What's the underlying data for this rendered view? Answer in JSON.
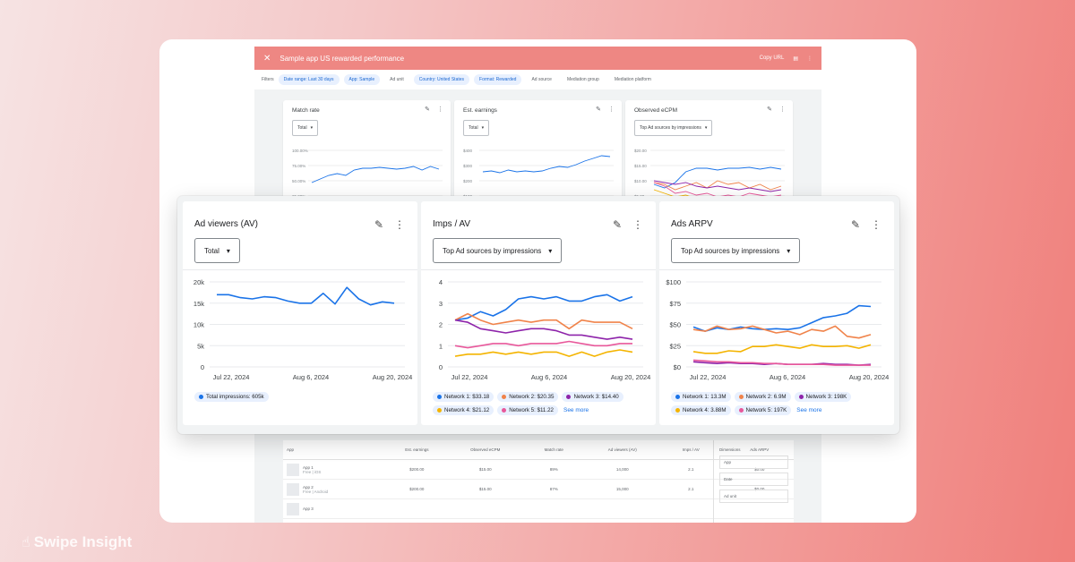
{
  "watermark": "Swipe Insight",
  "topbar": {
    "title": "Sample app US rewarded performance",
    "copy_url": "Copy URL"
  },
  "filters": {
    "label": "Filters",
    "chips": [
      "Date range: Last 30 days",
      "App: Sample",
      "Ad unit",
      "Country: United States",
      "Format: Rewarded",
      "Ad source",
      "Mediation group",
      "Mediation platform"
    ],
    "active": [
      true,
      true,
      false,
      true,
      true,
      false,
      false,
      false
    ]
  },
  "minicards": [
    {
      "title": "Match rate",
      "dropdown": "Total",
      "yticks": [
        "100.00%",
        "75.00%",
        "50.00%",
        "25.00%"
      ]
    },
    {
      "title": "Est. earnings",
      "dropdown": "Total",
      "yticks": [
        "$400",
        "$300",
        "$200",
        "$100"
      ]
    },
    {
      "title": "Observed eCPM",
      "dropdown": "Top Ad sources by impressions",
      "yticks": [
        "$20.00",
        "$15.00",
        "$10.00",
        "$5.00"
      ]
    }
  ],
  "table": {
    "headers": [
      "App",
      "Est. earnings",
      "Observed eCPM",
      "Match rate",
      "Ad viewers (AV)",
      "Imps / AV",
      "Ads ARPV"
    ],
    "rows": [
      {
        "name": "App 1",
        "sub": "Free | iOS",
        "values": [
          "$200.00",
          "$15.00",
          "89%",
          "14,000",
          "2.1",
          "$0.00"
        ]
      },
      {
        "name": "App 2",
        "sub": "Free | Android",
        "values": [
          "$200.00",
          "$15.00",
          "87%",
          "15,000",
          "2.1",
          "$0.00"
        ]
      },
      {
        "name": "App 3",
        "sub": "",
        "values": [
          "",
          "",
          "",
          "",
          "",
          ""
        ]
      }
    ],
    "dimensions_label": "Dimensions",
    "dimensions": [
      "App",
      "Date",
      "Ad unit"
    ]
  },
  "cards": [
    {
      "title": "Ad viewers (AV)",
      "dropdown": "Total",
      "yticks": [
        "20k",
        "15k",
        "10k",
        "5k",
        "0"
      ],
      "xticks": [
        "Jul 22, 2024",
        "Aug 6, 2024",
        "Aug 20, 2024"
      ],
      "legend": [
        {
          "label": "Total impressions: 605k",
          "color": "#1a73e8"
        }
      ],
      "see_more": ""
    },
    {
      "title": "Imps / AV",
      "dropdown": "Top Ad sources by impressions",
      "yticks": [
        "4",
        "3",
        "2",
        "1",
        "0"
      ],
      "xticks": [
        "Jul 22, 2024",
        "Aug 6, 2024",
        "Aug 20, 2024"
      ],
      "legend": [
        {
          "label": "Network 1: $33.18",
          "color": "#1a73e8"
        },
        {
          "label": "Network 2: $20.35",
          "color": "#f0834a"
        },
        {
          "label": "Network 3: $14.40",
          "color": "#8e24aa"
        },
        {
          "label": "Network 4: $21.12",
          "color": "#f4b400"
        },
        {
          "label": "Network 5: $11.22",
          "color": "#e8589b"
        }
      ],
      "see_more": "See more"
    },
    {
      "title": "Ads ARPV",
      "dropdown": "Top Ad sources by impressions",
      "yticks": [
        "$100",
        "$75",
        "$50",
        "$25",
        "$0"
      ],
      "xticks": [
        "Jul 22, 2024",
        "Aug 6, 2024",
        "Aug 20, 2024"
      ],
      "legend": [
        {
          "label": "Network 1: 13.3M",
          "color": "#1a73e8"
        },
        {
          "label": "Network 2: 6.9M",
          "color": "#f0834a"
        },
        {
          "label": "Network 3: 198K",
          "color": "#8e24aa"
        },
        {
          "label": "Network 4: 3.88M",
          "color": "#f4b400"
        },
        {
          "label": "Network 5: 197K",
          "color": "#e8589b"
        }
      ],
      "see_more": "See more"
    }
  ],
  "chart_data": [
    {
      "type": "line",
      "title": "Ad viewers (AV)",
      "x_ticks": [
        "Jul 22, 2024",
        "Aug 6, 2024",
        "Aug 20, 2024"
      ],
      "ylim": [
        0,
        20000
      ],
      "series": [
        {
          "name": "Total impressions: 605k",
          "color": "#1a73e8",
          "values": [
            17000,
            17000,
            16300,
            16000,
            16500,
            16300,
            15500,
            15000,
            15000,
            17300,
            14800,
            18700,
            16000,
            14600,
            15300,
            15000
          ]
        }
      ]
    },
    {
      "type": "line",
      "title": "Imps / AV",
      "x_ticks": [
        "Jul 22, 2024",
        "Aug 6, 2024",
        "Aug 20, 2024"
      ],
      "ylim": [
        0,
        4
      ],
      "series": [
        {
          "name": "Network 1: $33.18",
          "color": "#1a73e8",
          "values": [
            2.2,
            2.3,
            2.6,
            2.4,
            2.7,
            3.2,
            3.3,
            3.2,
            3.3,
            3.1,
            3.1,
            3.3,
            3.4,
            3.1,
            3.3
          ]
        },
        {
          "name": "Network 2: $20.35",
          "color": "#f0834a",
          "values": [
            2.2,
            2.5,
            2.2,
            2.0,
            2.1,
            2.2,
            2.1,
            2.2,
            2.2,
            1.8,
            2.2,
            2.1,
            2.1,
            2.1,
            1.8
          ]
        },
        {
          "name": "Network 3: $14.40",
          "color": "#8e24aa",
          "values": [
            2.2,
            2.1,
            1.8,
            1.7,
            1.6,
            1.7,
            1.8,
            1.8,
            1.7,
            1.5,
            1.5,
            1.4,
            1.3,
            1.4,
            1.3
          ]
        },
        {
          "name": "Network 4: $21.12",
          "color": "#f4b400",
          "values": [
            0.5,
            0.6,
            0.6,
            0.7,
            0.6,
            0.7,
            0.6,
            0.7,
            0.7,
            0.5,
            0.7,
            0.5,
            0.7,
            0.8,
            0.7
          ]
        },
        {
          "name": "Network 5: $11.22",
          "color": "#e8589b",
          "values": [
            1.0,
            0.9,
            1.0,
            1.1,
            1.1,
            1.0,
            1.1,
            1.1,
            1.1,
            1.2,
            1.1,
            1.0,
            1.0,
            1.1,
            1.1
          ]
        }
      ]
    },
    {
      "type": "line",
      "title": "Ads ARPV",
      "x_ticks": [
        "Jul 22, 2024",
        "Aug 6, 2024",
        "Aug 20, 2024"
      ],
      "ylim": [
        0,
        100
      ],
      "series": [
        {
          "name": "Network 1: 13.3M",
          "color": "#1a73e8",
          "values": [
            47,
            42,
            46,
            44,
            47,
            45,
            44,
            45,
            44,
            46,
            52,
            58,
            60,
            63,
            72,
            71
          ]
        },
        {
          "name": "Network 2: 6.9M",
          "color": "#f0834a",
          "values": [
            44,
            42,
            48,
            44,
            45,
            48,
            44,
            40,
            42,
            38,
            44,
            42,
            48,
            36,
            34,
            38
          ]
        },
        {
          "name": "Network 3: 198K",
          "color": "#8e24aa",
          "values": [
            6,
            5,
            4,
            5,
            4,
            4,
            3,
            4,
            3,
            3,
            3,
            4,
            3,
            3,
            2,
            3
          ]
        },
        {
          "name": "Network 4: 3.88M",
          "color": "#f4b400",
          "values": [
            18,
            16,
            16,
            19,
            18,
            24,
            24,
            26,
            24,
            22,
            26,
            24,
            24,
            25,
            22,
            26
          ]
        },
        {
          "name": "Network 5: 197K",
          "color": "#e8589b",
          "values": [
            8,
            7,
            6,
            6,
            5,
            5,
            4,
            4,
            3,
            3,
            3,
            3,
            2,
            2,
            2,
            2
          ]
        }
      ]
    }
  ]
}
